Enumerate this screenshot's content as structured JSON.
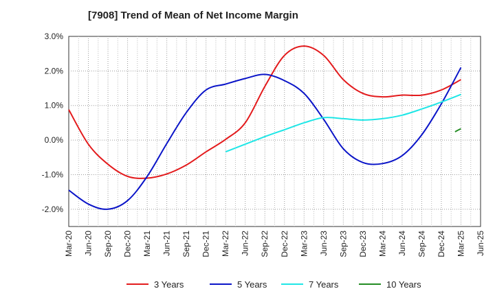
{
  "chart_data": {
    "type": "line",
    "title": "[7908]  Trend of Mean of Net Income Margin",
    "xlabel": "",
    "ylabel": "",
    "x_ticks": [
      "Mar-20",
      "Jun-20",
      "Sep-20",
      "Dec-20",
      "Mar-21",
      "Jun-21",
      "Sep-21",
      "Dec-21",
      "Mar-22",
      "Jun-22",
      "Sep-22",
      "Dec-22",
      "Mar-23",
      "Jun-23",
      "Sep-23",
      "Dec-23",
      "Mar-24",
      "Jun-24",
      "Sep-24",
      "Dec-24",
      "Mar-25",
      "Jun-25"
    ],
    "y_ticks": [
      "3.0%",
      "2.0%",
      "1.0%",
      "0.0%",
      "-1.0%",
      "-2.0%"
    ],
    "y_tick_values": [
      3,
      2,
      1,
      0,
      -1,
      -2
    ],
    "ylim": [
      -2.5,
      3.0
    ],
    "unit": "%",
    "grid": true,
    "legend_position": "bottom",
    "series": [
      {
        "name": "3 Years",
        "color": "#e31a1c",
        "x": [
          0,
          1,
          2,
          3,
          4,
          5,
          6,
          7,
          8,
          9,
          10,
          11,
          12,
          13,
          14,
          15,
          16,
          17,
          18,
          19,
          20
        ],
        "y": [
          0.88,
          -0.12,
          -0.7,
          -1.05,
          -1.1,
          -0.98,
          -0.72,
          -0.34,
          0.02,
          0.5,
          1.55,
          2.45,
          2.72,
          2.45,
          1.75,
          1.35,
          1.25,
          1.3,
          1.3,
          1.45,
          1.75
        ]
      },
      {
        "name": "5 Years",
        "color": "#0a14c8",
        "x": [
          0,
          1,
          2,
          3,
          4,
          5,
          6,
          7,
          8,
          9,
          10,
          11,
          12,
          13,
          14,
          15,
          16,
          17,
          18,
          19,
          20
        ],
        "y": [
          -1.45,
          -1.85,
          -2.0,
          -1.75,
          -1.05,
          -0.1,
          0.8,
          1.45,
          1.62,
          1.78,
          1.9,
          1.72,
          1.35,
          0.6,
          -0.25,
          -0.65,
          -0.68,
          -0.45,
          0.15,
          1.05,
          2.1
        ]
      },
      {
        "name": "7 Years",
        "color": "#1ee6e6",
        "x": [
          8,
          9,
          10,
          11,
          12,
          13,
          14,
          15,
          16,
          17,
          18,
          19,
          20
        ],
        "y": [
          -0.34,
          -0.12,
          0.1,
          0.3,
          0.5,
          0.65,
          0.62,
          0.58,
          0.62,
          0.72,
          0.9,
          1.1,
          1.32
        ]
      },
      {
        "name": "10 Years",
        "color": "#228b22",
        "x": [
          19.7,
          20
        ],
        "y": [
          0.24,
          0.33
        ]
      }
    ]
  }
}
